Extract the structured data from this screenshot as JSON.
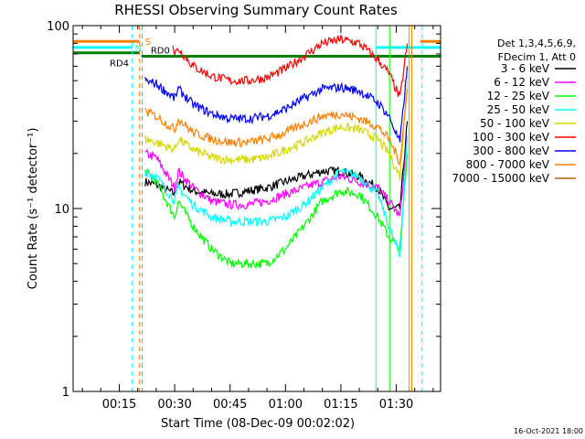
{
  "chart_data": {
    "type": "line",
    "title": "RHESSI Observing Summary Count Rates",
    "xlabel": "Start Time (08-Dec-09 00:02:02)",
    "ylabel": "Count Rate (s⁻¹ detector⁻¹)",
    "x_unit": "minutes after 00:00",
    "xlim": [
      2.5,
      102
    ],
    "ylim": [
      1,
      100
    ],
    "yscale": "log",
    "x_ticks": [
      {
        "x": 15,
        "label": "00:15"
      },
      {
        "x": 30,
        "label": "00:30"
      },
      {
        "x": 45,
        "label": "00:45"
      },
      {
        "x": 60,
        "label": "01:00"
      },
      {
        "x": 75,
        "label": "01:15"
      },
      {
        "x": 90,
        "label": "01:30"
      }
    ],
    "y_ticks": [
      {
        "y": 1,
        "label": "1"
      },
      {
        "y": 10,
        "label": "10"
      },
      {
        "y": 100,
        "label": "100"
      }
    ],
    "legend_header": [
      "Det 1,3,4,5,6,9,",
      "FDecim 1, Att 0"
    ],
    "legend_position": "right",
    "series": [
      {
        "name": "3 - 6 keV",
        "color": "#000000",
        "x": [
          22,
          25,
          30,
          31,
          35,
          40,
          45,
          50,
          55,
          60,
          65,
          70,
          75,
          80,
          85,
          88,
          91,
          93
        ],
        "y": [
          14,
          13.5,
          12,
          14,
          12.5,
          12,
          12,
          12.5,
          13,
          14,
          15,
          16,
          16,
          15,
          13,
          10,
          10,
          30
        ]
      },
      {
        "name": "6 - 12 keV",
        "color": "#ff00ff",
        "x": [
          22,
          25,
          30,
          31,
          35,
          40,
          45,
          50,
          55,
          60,
          65,
          70,
          75,
          80,
          85,
          88,
          91,
          93
        ],
        "y": [
          20,
          19,
          13,
          16,
          13,
          11,
          10.5,
          10.5,
          11,
          12,
          13,
          14,
          15,
          14,
          13,
          11,
          9,
          25
        ]
      },
      {
        "name": "12 - 25 keV",
        "color": "#00ff00",
        "x": [
          22,
          25,
          30,
          31,
          35,
          40,
          45,
          50,
          55,
          60,
          65,
          70,
          75,
          80,
          85,
          88,
          91,
          93
        ],
        "y": [
          16,
          14,
          9,
          11,
          8,
          6,
          5,
          5,
          5,
          6,
          8,
          11,
          12.5,
          12,
          9,
          7,
          6,
          20
        ]
      },
      {
        "name": "25 - 50 keV",
        "color": "#00ffff",
        "x": [
          22,
          25,
          30,
          31,
          35,
          40,
          45,
          50,
          55,
          60,
          65,
          70,
          75,
          80,
          85,
          88,
          91,
          93
        ],
        "y": [
          16,
          15,
          11,
          13,
          10.5,
          9,
          8.5,
          8.5,
          8.5,
          9,
          10.5,
          13,
          16,
          15,
          12,
          8,
          5.5,
          25
        ]
      },
      {
        "name": "50 - 100 keV",
        "color": "#d7d700",
        "x": [
          22,
          25,
          30,
          31,
          35,
          40,
          45,
          50,
          55,
          60,
          65,
          70,
          75,
          80,
          85,
          88,
          91,
          93
        ],
        "y": [
          24,
          23,
          21,
          24,
          21,
          19,
          18.5,
          18.5,
          19,
          21,
          23,
          26,
          28,
          27,
          24,
          20,
          15,
          50
        ]
      },
      {
        "name": "100 - 300 keV",
        "color": "#ff0000",
        "x": [
          29.5,
          30,
          31,
          35,
          40,
          45,
          50,
          55,
          60,
          65,
          70,
          75,
          80,
          85,
          88,
          91,
          93
        ],
        "y": [
          80,
          70,
          75,
          60,
          53,
          50,
          50,
          52,
          58,
          68,
          80,
          84,
          80,
          65,
          55,
          40,
          80
        ]
      },
      {
        "name": "300 - 800 keV",
        "color": "#0000ff",
        "x": [
          22,
          25,
          30,
          31,
          35,
          40,
          45,
          50,
          55,
          60,
          65,
          70,
          75,
          80,
          85,
          88,
          91,
          93
        ],
        "y": [
          50,
          48,
          40,
          45,
          37,
          33,
          31,
          31,
          32,
          35,
          40,
          45,
          46,
          44,
          38,
          32,
          23,
          60
        ]
      },
      {
        "name": "800 - 7000 keV",
        "color": "#ff8000",
        "x": [
          22,
          25,
          30,
          31,
          35,
          40,
          45,
          50,
          55,
          60,
          65,
          70,
          75,
          80,
          85,
          88,
          91,
          93
        ],
        "y": [
          34,
          32,
          27,
          31,
          26,
          24,
          23,
          23,
          24,
          26,
          29,
          32,
          33,
          31,
          28,
          24,
          18,
          45
        ]
      },
      {
        "name": "7000 - 15000 keV",
        "color": "#b06000",
        "x": [],
        "y": []
      }
    ],
    "annotations": [
      {
        "label": "S",
        "color": "#ff8000"
      },
      {
        "label": "N",
        "color": "#00ffff"
      },
      {
        "label": "RD0",
        "color": "#008000"
      },
      {
        "label": "RD4",
        "color": "#008000"
      }
    ],
    "timestamp": "16-Oct-2021 18:00"
  }
}
